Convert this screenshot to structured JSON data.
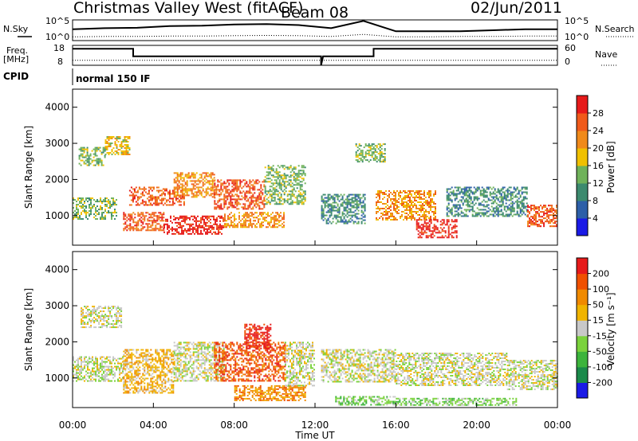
{
  "header": {
    "station": "Christmas Valley West (fitACF)",
    "beam": "Beam 08",
    "date": "02/Jun/2011"
  },
  "side_labels": {
    "nsky": "N.Sky",
    "nsearch": "N.Search",
    "freq": "Freq.",
    "freq_unit": "[MHz]",
    "nave": "Nave",
    "cpid": "CPID"
  },
  "noise_ticks": {
    "left_top": "10^5",
    "left_bottom": "10^0",
    "right_top": "10^5",
    "right_bottom": "10^0"
  },
  "freq_ticks": {
    "left_top": "18",
    "left_bottom": "8",
    "right_top": "60",
    "right_bottom": "0"
  },
  "cpid_text": "normal 150 IF",
  "x_axis": {
    "label": "Time UT",
    "ticks": [
      "00:00",
      "04:00",
      "08:00",
      "12:00",
      "16:00",
      "20:00",
      "00:00"
    ]
  },
  "power_panel": {
    "ylabel": "Slant Range [km]",
    "yticks": [
      "1000",
      "2000",
      "3000",
      "4000"
    ],
    "colorbar_label": "Power [dB]",
    "colorbar_ticks": [
      "4",
      "8",
      "12",
      "16",
      "20",
      "24",
      "28"
    ],
    "colors": [
      "#1a1ae6",
      "#2d5fa8",
      "#3c8a6e",
      "#6fb25a",
      "#f0c000",
      "#f08a1a",
      "#f05a1a",
      "#e61a1a"
    ]
  },
  "velocity_panel": {
    "ylabel": "Slant Range [km]",
    "yticks": [
      "1000",
      "2000",
      "3000",
      "4000"
    ],
    "colorbar_label": "Velocity [m s⁻¹]",
    "colorbar_ticks": [
      "200",
      "100",
      "50",
      "15",
      "-15",
      "-50",
      "-100",
      "-200"
    ],
    "colors": [
      "#1a1ae6",
      "#1a8a4a",
      "#3cb43c",
      "#7ad23c",
      "#c8c8c8",
      "#f0b400",
      "#f08a00",
      "#f05000",
      "#e61a1a"
    ]
  },
  "chart_data": {
    "type": "heatmap",
    "x_range_hours": [
      0,
      24
    ],
    "y_range_km": [
      180,
      4500
    ],
    "noise_series": {
      "sky_level": [
        0.55,
        0.6,
        0.62,
        0.7,
        0.72,
        0.78,
        0.8,
        0.75,
        0.6,
        0.95,
        0.45,
        0.45,
        0.45,
        0.5,
        0.55,
        0.55
      ],
      "search_level": [
        0.18,
        0.2,
        0.2,
        0.22,
        0.22,
        0.24,
        0.25,
        0.24,
        0.2,
        0.3,
        0.18,
        0.18,
        0.2,
        0.2,
        0.22,
        0.22
      ]
    },
    "freq_series_mhz": [
      {
        "t": 0.0,
        "v": 16.3
      },
      {
        "t": 3.0,
        "v": 16.3
      },
      {
        "t": 3.0,
        "v": 12.5
      },
      {
        "t": 12.3,
        "v": 12.5
      },
      {
        "t": 12.3,
        "v": 8.0
      },
      {
        "t": 12.4,
        "v": 12.5
      },
      {
        "t": 14.9,
        "v": 12.5
      },
      {
        "t": 14.9,
        "v": 16.3
      },
      {
        "t": 24.0,
        "v": 16.3
      }
    ],
    "nave_level": 15,
    "power_blobs": [
      {
        "t0": 0.0,
        "t1": 2.2,
        "r0": 900,
        "r1": 1500,
        "level": 3
      },
      {
        "t0": 0.3,
        "t1": 1.6,
        "r0": 2400,
        "r1": 2900,
        "level": 3
      },
      {
        "t0": 1.6,
        "t1": 2.8,
        "r0": 2700,
        "r1": 3200,
        "level": 4
      },
      {
        "t0": 2.8,
        "t1": 5.5,
        "r0": 1300,
        "r1": 1800,
        "level": 6
      },
      {
        "t0": 2.5,
        "t1": 4.5,
        "r0": 600,
        "r1": 1100,
        "level": 6
      },
      {
        "t0": 4.5,
        "t1": 7.5,
        "r0": 500,
        "r1": 1000,
        "level": 7
      },
      {
        "t0": 5.0,
        "t1": 7.0,
        "r0": 1500,
        "r1": 2200,
        "level": 5
      },
      {
        "t0": 7.0,
        "t1": 9.5,
        "r0": 1200,
        "r1": 2000,
        "level": 6
      },
      {
        "t0": 7.5,
        "t1": 10.5,
        "r0": 700,
        "r1": 1100,
        "level": 5
      },
      {
        "t0": 9.5,
        "t1": 11.5,
        "r0": 1300,
        "r1": 2400,
        "level": 3
      },
      {
        "t0": 12.3,
        "t1": 14.5,
        "r0": 800,
        "r1": 1600,
        "level": 2
      },
      {
        "t0": 14.0,
        "t1": 15.5,
        "r0": 2500,
        "r1": 3000,
        "level": 3
      },
      {
        "t0": 15.0,
        "t1": 18.0,
        "r0": 900,
        "r1": 1700,
        "level": 5
      },
      {
        "t0": 17.0,
        "t1": 19.0,
        "r0": 400,
        "r1": 900,
        "level": 7
      },
      {
        "t0": 18.5,
        "t1": 22.5,
        "r0": 1000,
        "r1": 1800,
        "level": 2
      },
      {
        "t0": 22.5,
        "t1": 24.0,
        "r0": 700,
        "r1": 1300,
        "level": 6
      }
    ],
    "velocity_blobs": [
      {
        "t0": 0.0,
        "t1": 2.5,
        "r0": 900,
        "r1": 1600,
        "level": 4
      },
      {
        "t0": 0.4,
        "t1": 2.4,
        "r0": 2400,
        "r1": 3000,
        "level": 4
      },
      {
        "t0": 2.5,
        "t1": 5.0,
        "r0": 600,
        "r1": 1800,
        "level": 5
      },
      {
        "t0": 5.0,
        "t1": 7.5,
        "r0": 900,
        "r1": 2000,
        "level": 4
      },
      {
        "t0": 7.0,
        "t1": 10.5,
        "r0": 900,
        "r1": 2000,
        "level": 7
      },
      {
        "t0": 8.5,
        "t1": 9.8,
        "r0": 1800,
        "r1": 2500,
        "level": 8
      },
      {
        "t0": 8.0,
        "t1": 11.5,
        "r0": 400,
        "r1": 800,
        "level": 6
      },
      {
        "t0": 10.5,
        "t1": 12.0,
        "r0": 800,
        "r1": 2000,
        "level": 4
      },
      {
        "t0": 12.3,
        "t1": 16.0,
        "r0": 900,
        "r1": 1800,
        "level": 4
      },
      {
        "t0": 13.0,
        "t1": 16.0,
        "r0": 250,
        "r1": 500,
        "level": 3
      },
      {
        "t0": 16.0,
        "t1": 22.0,
        "r0": 250,
        "r1": 450,
        "level": 3
      },
      {
        "t0": 16.0,
        "t1": 21.5,
        "r0": 800,
        "r1": 1700,
        "level": 4
      },
      {
        "t0": 21.5,
        "t1": 24.0,
        "r0": 700,
        "r1": 1500,
        "level": 4
      }
    ]
  }
}
